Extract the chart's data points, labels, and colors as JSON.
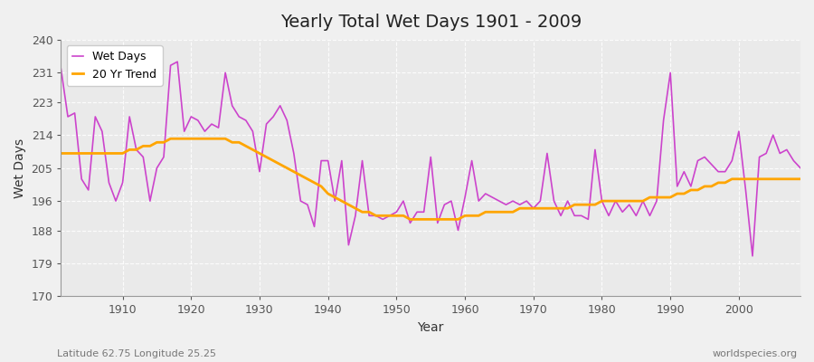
{
  "title": "Yearly Total Wet Days 1901 - 2009",
  "xlabel": "Year",
  "ylabel": "Wet Days",
  "footnote_left": "Latitude 62.75 Longitude 25.25",
  "footnote_right": "worldspecies.org",
  "legend_wet": "Wet Days",
  "legend_trend": "20 Yr Trend",
  "ylim": [
    170,
    240
  ],
  "yticks": [
    170,
    179,
    188,
    196,
    205,
    214,
    223,
    231,
    240
  ],
  "xlim": [
    1901,
    2009
  ],
  "xticks": [
    1910,
    1920,
    1930,
    1940,
    1950,
    1960,
    1970,
    1980,
    1990,
    2000
  ],
  "wet_color": "#CC44CC",
  "trend_color": "#FFA500",
  "bg_color": "#EAEAEA",
  "fig_color": "#F0F0F0",
  "wet_days": [
    232,
    219,
    220,
    202,
    199,
    219,
    215,
    201,
    196,
    201,
    219,
    210,
    208,
    196,
    205,
    208,
    233,
    234,
    215,
    219,
    218,
    215,
    217,
    216,
    231,
    222,
    219,
    218,
    215,
    204,
    217,
    219,
    222,
    218,
    209,
    196,
    195,
    189,
    207,
    207,
    196,
    207,
    184,
    192,
    207,
    192,
    192,
    191,
    192,
    193,
    196,
    190,
    193,
    193,
    208,
    190,
    195,
    196,
    188,
    197,
    207,
    196,
    198,
    197,
    196,
    195,
    196,
    195,
    196,
    194,
    196,
    209,
    196,
    192,
    196,
    192,
    192,
    191,
    210,
    196,
    192,
    196,
    193,
    195,
    192,
    196,
    192,
    196,
    218,
    231,
    200,
    204,
    200,
    207,
    208,
    206,
    204,
    204,
    207,
    215,
    199,
    181,
    208,
    209,
    214,
    209,
    210,
    207,
    205
  ],
  "trend_years": [
    1901,
    1902,
    1903,
    1904,
    1905,
    1906,
    1907,
    1908,
    1909,
    1910,
    1911,
    1912,
    1913,
    1914,
    1915,
    1916,
    1917,
    1918,
    1919,
    1920,
    1921,
    1922,
    1923,
    1924,
    1925,
    1926,
    1927,
    1928,
    1929,
    1930,
    1931,
    1932,
    1933,
    1934,
    1935,
    1936,
    1937,
    1938,
    1939,
    1940,
    1941,
    1942,
    1943,
    1944,
    1945,
    1946,
    1947,
    1948,
    1949,
    1950,
    1951,
    1952,
    1953,
    1954,
    1955,
    1956,
    1957,
    1958,
    1959,
    1960,
    1961,
    1962,
    1963,
    1964,
    1965,
    1966,
    1967,
    1968,
    1969,
    1970,
    1971,
    1972,
    1973,
    1974,
    1975,
    1976,
    1977,
    1978,
    1979,
    1980,
    1981,
    1982,
    1983,
    1984,
    1985,
    1986,
    1987,
    1988,
    1989,
    1990,
    1991,
    1992,
    1993,
    1994,
    1995,
    1996,
    1997,
    1998,
    1999,
    2000,
    2001,
    2002,
    2003,
    2004,
    2005,
    2006,
    2007,
    2008,
    2009
  ],
  "trend_vals": [
    209,
    209,
    209,
    209,
    209,
    209,
    209,
    209,
    209,
    209,
    210,
    210,
    211,
    211,
    212,
    212,
    213,
    213,
    213,
    213,
    213,
    213,
    213,
    213,
    213,
    212,
    212,
    211,
    210,
    209,
    208,
    207,
    206,
    205,
    204,
    203,
    202,
    201,
    200,
    198,
    197,
    196,
    195,
    194,
    193,
    193,
    192,
    192,
    192,
    192,
    192,
    191,
    191,
    191,
    191,
    191,
    191,
    191,
    191,
    192,
    192,
    192,
    193,
    193,
    193,
    193,
    193,
    194,
    194,
    194,
    194,
    194,
    194,
    194,
    194,
    195,
    195,
    195,
    195,
    196,
    196,
    196,
    196,
    196,
    196,
    196,
    197,
    197,
    197,
    197,
    198,
    198,
    199,
    199,
    200,
    200,
    201,
    201,
    202,
    202,
    202,
    202,
    202,
    202,
    202,
    202,
    202,
    202,
    202
  ]
}
